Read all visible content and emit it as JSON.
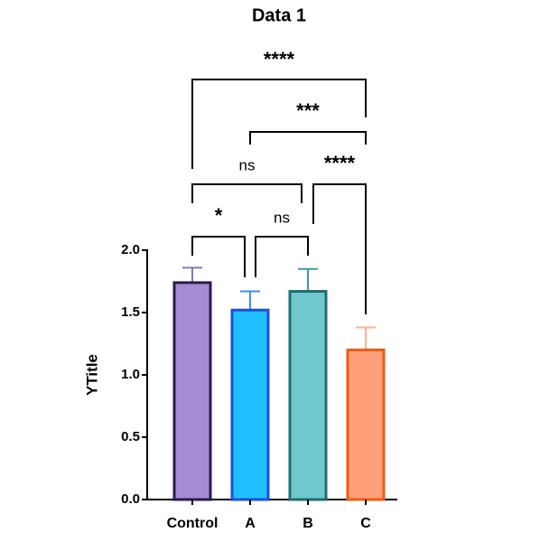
{
  "chart_data": {
    "type": "bar",
    "title": "Data 1",
    "y_label": "YTitle",
    "categories": [
      "Control",
      "A",
      "B",
      "C"
    ],
    "values": [
      1.74,
      1.52,
      1.67,
      1.2
    ],
    "errors": [
      0.12,
      0.15,
      0.18,
      0.18
    ],
    "colors": [
      "#a58bd3",
      "#1ec0ff",
      "#6fc8cc",
      "#ffa07a"
    ],
    "edge_colors": [
      "#2d1a4f",
      "#1f4fd8",
      "#1e6e75",
      "#f05a14"
    ],
    "error_colors": [
      "#8a75b5",
      "#3a8ff0",
      "#3f9aa0",
      "#ffb08e"
    ],
    "ylim": [
      0,
      2
    ],
    "yticks": [
      {
        "value": 0,
        "label": "0.0"
      },
      {
        "value": 0.5,
        "label": "0.5"
      },
      {
        "value": 1,
        "label": "1.0"
      },
      {
        "value": 1.5,
        "label": "1.5"
      },
      {
        "value": 2,
        "label": "2.0"
      }
    ],
    "annotations": [
      {
        "text": "*",
        "from": "Control",
        "to": "A"
      },
      {
        "text": "ns",
        "from": "A",
        "to": "B"
      },
      {
        "text": "ns",
        "from": "Control",
        "to": "B"
      },
      {
        "text": "****",
        "from": "B",
        "to": "C"
      },
      {
        "text": "***",
        "from": "A",
        "to": "C"
      },
      {
        "text": "****",
        "from": "Control",
        "to": "C"
      }
    ]
  }
}
